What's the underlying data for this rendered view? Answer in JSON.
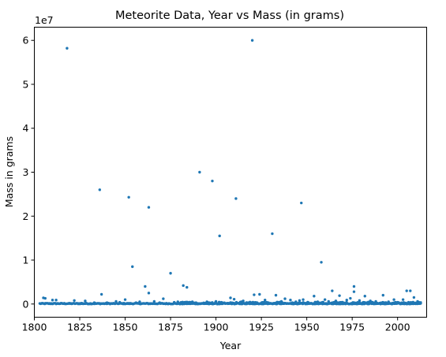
{
  "chart_data": {
    "type": "scatter",
    "title": "Meteorite Data, Year vs Mass (in grams)",
    "xlabel": "Year",
    "ylabel": "Mass in grams",
    "offset_label": "1e7",
    "xlim": [
      1800,
      2016
    ],
    "ylim": [
      -3000000,
      63000000
    ],
    "x_ticks": [
      1800,
      1825,
      1850,
      1875,
      1900,
      1925,
      1950,
      1975,
      2000
    ],
    "y_ticks": [
      0,
      10000000,
      20000000,
      30000000,
      40000000,
      50000000,
      60000000
    ],
    "y_tick_labels": [
      "0",
      "1",
      "2",
      "3",
      "4",
      "5",
      "6"
    ],
    "grid": false,
    "marker_color": "#1f77b4",
    "series": [
      {
        "points": [
          [
            1818,
            58200000
          ],
          [
            1920,
            60000000
          ],
          [
            1836,
            26000000
          ],
          [
            1852,
            24300000
          ],
          [
            1863,
            22000000
          ],
          [
            1891,
            30000000
          ],
          [
            1898,
            28000000
          ],
          [
            1911,
            24000000
          ],
          [
            1947,
            23000000
          ],
          [
            1902,
            15500000
          ],
          [
            1931,
            16000000
          ],
          [
            1854,
            8500000
          ],
          [
            1958,
            9500000
          ],
          [
            1875,
            7000000
          ],
          [
            1861,
            4000000
          ],
          [
            1882,
            4200000
          ],
          [
            1884,
            3800000
          ],
          [
            1863,
            2500000
          ],
          [
            1837,
            2200000
          ],
          [
            1921,
            2100000
          ],
          [
            1924,
            2200000
          ],
          [
            1933,
            2000000
          ],
          [
            1964,
            3000000
          ],
          [
            1976,
            4000000
          ],
          [
            1976,
            2800000
          ],
          [
            2005,
            3000000
          ],
          [
            2007,
            3000000
          ],
          [
            1992,
            2000000
          ],
          [
            1982,
            1800000
          ],
          [
            1968,
            1900000
          ],
          [
            1954,
            1800000
          ],
          [
            1805,
            1400000
          ],
          [
            1806,
            1300000
          ],
          [
            1810,
            900000
          ],
          [
            1812,
            900000
          ],
          [
            1822,
            800000
          ],
          [
            1828,
            700000
          ],
          [
            1845,
            600000
          ],
          [
            1850,
            1000000
          ],
          [
            1858,
            500000
          ],
          [
            1866,
            600000
          ],
          [
            1871,
            1200000
          ],
          [
            1908,
            1400000
          ],
          [
            1910,
            1100000
          ],
          [
            1938,
            1200000
          ],
          [
            1941,
            900000
          ],
          [
            1946,
            800000
          ],
          [
            1948,
            1000000
          ],
          [
            1960,
            1000000
          ],
          [
            1966,
            700000
          ],
          [
            1972,
            900000
          ],
          [
            1974,
            1300000
          ],
          [
            1979,
            800000
          ],
          [
            1985,
            700000
          ],
          [
            1998,
            1000000
          ],
          [
            2003,
            1000000
          ],
          [
            2009,
            1500000
          ],
          [
            2011,
            600000
          ],
          [
            1900,
            600000
          ],
          [
            1895,
            500000
          ],
          [
            1887,
            500000
          ],
          [
            1879,
            500000
          ],
          [
            1915,
            700000
          ],
          [
            1927,
            900000
          ],
          [
            1936,
            600000
          ],
          [
            1944,
            500000
          ],
          [
            1956,
            500000
          ],
          [
            1962,
            600000
          ],
          [
            1988,
            600000
          ],
          [
            1995,
            500000
          ],
          [
            2000,
            400000
          ],
          [
            1914,
            500000
          ],
          [
            1840,
            300000
          ],
          [
            1826,
            200000
          ],
          [
            1833,
            300000
          ],
          [
            1847,
            400000
          ],
          [
            1856,
            300000
          ],
          [
            1869,
            300000
          ],
          [
            1877,
            400000
          ],
          [
            1889,
            300000
          ],
          [
            1903,
            400000
          ],
          [
            1918,
            300000
          ],
          [
            1928,
            400000
          ],
          [
            1942,
            300000
          ],
          [
            1951,
            300000
          ],
          [
            1969,
            400000
          ],
          [
            1983,
            300000
          ],
          [
            1993,
            300000
          ],
          [
            2006,
            400000
          ],
          [
            2012,
            300000
          ]
        ]
      }
    ]
  }
}
